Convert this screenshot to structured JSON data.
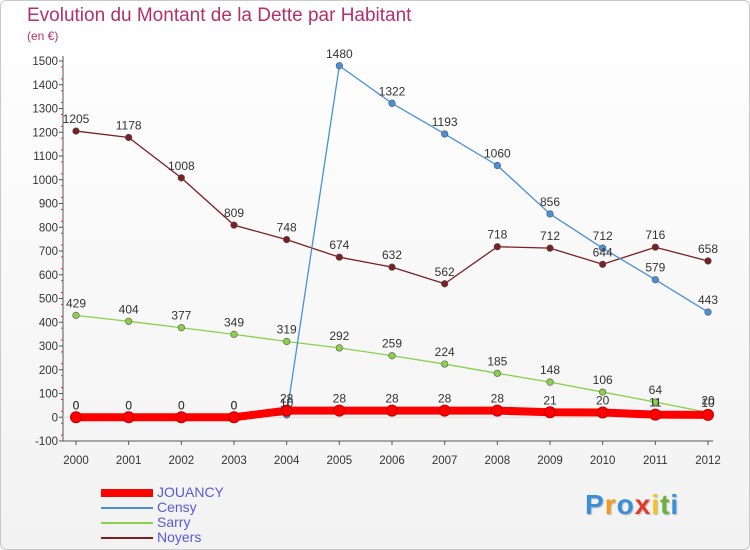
{
  "chart_data": {
    "type": "line",
    "title": "Evolution du Montant de la Dette par Habitant",
    "unit_label": "(en €)",
    "x": [
      "2000",
      "2001",
      "2002",
      "2003",
      "2004",
      "2005",
      "2006",
      "2007",
      "2008",
      "2009",
      "2010",
      "2011",
      "2012"
    ],
    "ylim": [
      -100,
      1500
    ],
    "yticks": [
      -100,
      0,
      100,
      200,
      300,
      400,
      500,
      600,
      700,
      800,
      900,
      1000,
      1100,
      1200,
      1300,
      1400,
      1500
    ],
    "grid": false,
    "legend_position": "bottom-left",
    "series": [
      {
        "name": "JOUANCY",
        "color": "#ff0000",
        "values": [
          0,
          0,
          0,
          0,
          28,
          28,
          28,
          28,
          28,
          21,
          20,
          11,
          10
        ]
      },
      {
        "name": "Censy",
        "color": "#4a90d9",
        "values": [
          0,
          0,
          0,
          0,
          10,
          1480,
          1322,
          1193,
          1060,
          856,
          712,
          579,
          443
        ]
      },
      {
        "name": "Sarry",
        "color": "#8ad04a",
        "values": [
          429,
          404,
          377,
          349,
          319,
          292,
          259,
          224,
          185,
          148,
          106,
          64,
          20
        ]
      },
      {
        "name": "Noyers",
        "color": "#7a1f22",
        "values": [
          1205,
          1178,
          1008,
          809,
          748,
          674,
          632,
          562,
          718,
          712,
          644,
          716,
          658
        ]
      }
    ],
    "data_labels": [
      {
        "text": "0",
        "year": "2000",
        "value": 0
      },
      {
        "text": "0",
        "year": "2001",
        "value": 0
      },
      {
        "text": "0",
        "year": "2002",
        "value": 0
      },
      {
        "text": "0",
        "year": "2003",
        "value": 0
      },
      {
        "text": "28",
        "year": "2004",
        "value": 28
      },
      {
        "text": "28",
        "year": "2005",
        "value": 28
      },
      {
        "text": "28",
        "year": "2006",
        "value": 28
      },
      {
        "text": "28",
        "year": "2007",
        "value": 28
      },
      {
        "text": "28",
        "year": "2008",
        "value": 28
      },
      {
        "text": "21",
        "year": "2009",
        "value": 21
      },
      {
        "text": "20",
        "year": "2010",
        "value": 20
      },
      {
        "text": "11",
        "year": "2011",
        "value": 11
      },
      {
        "text": "10",
        "year": "2012",
        "value": 10
      },
      {
        "text": "0",
        "year": "2000",
        "value": 0
      },
      {
        "text": "0",
        "year": "2001",
        "value": 0
      },
      {
        "text": "0",
        "year": "2002",
        "value": 0
      },
      {
        "text": "0",
        "year": "2003",
        "value": 0
      },
      {
        "text": "10",
        "year": "2004",
        "value": 10
      },
      {
        "text": "1480",
        "year": "2005",
        "value": 1480
      },
      {
        "text": "1322",
        "year": "2006",
        "value": 1322
      },
      {
        "text": "1193",
        "year": "2007",
        "value": 1193
      },
      {
        "text": "1060",
        "year": "2008",
        "value": 1060
      },
      {
        "text": "856",
        "year": "2009",
        "value": 856
      },
      {
        "text": "712",
        "year": "2010",
        "value": 712
      },
      {
        "text": "579",
        "year": "2011",
        "value": 579
      },
      {
        "text": "443",
        "year": "2012",
        "value": 443
      },
      {
        "text": "429",
        "year": "2000",
        "value": 429
      },
      {
        "text": "404",
        "year": "2001",
        "value": 404
      },
      {
        "text": "377",
        "year": "2002",
        "value": 377
      },
      {
        "text": "349",
        "year": "2003",
        "value": 349
      },
      {
        "text": "319",
        "year": "2004",
        "value": 319
      },
      {
        "text": "292",
        "year": "2005",
        "value": 292
      },
      {
        "text": "259",
        "year": "2006",
        "value": 259
      },
      {
        "text": "224",
        "year": "2007",
        "value": 224
      },
      {
        "text": "185",
        "year": "2008",
        "value": 185
      },
      {
        "text": "148",
        "year": "2009",
        "value": 148
      },
      {
        "text": "106",
        "year": "2010",
        "value": 106
      },
      {
        "text": "64",
        "year": "2011",
        "value": 64
      },
      {
        "text": "20",
        "year": "2012",
        "value": 20
      },
      {
        "text": "1205",
        "year": "2000",
        "value": 1205
      },
      {
        "text": "1178",
        "year": "2001",
        "value": 1178
      },
      {
        "text": "1008",
        "year": "2002",
        "value": 1008
      },
      {
        "text": "809",
        "year": "2003",
        "value": 809
      },
      {
        "text": "748",
        "year": "2004",
        "value": 748
      },
      {
        "text": "674",
        "year": "2005",
        "value": 674
      },
      {
        "text": "632",
        "year": "2006",
        "value": 632
      },
      {
        "text": "562",
        "year": "2007",
        "value": 562
      },
      {
        "text": "718",
        "year": "2008",
        "value": 718
      },
      {
        "text": "712",
        "year": "2009",
        "value": 712
      },
      {
        "text": "644",
        "year": "2010",
        "value": 644
      },
      {
        "text": "716",
        "year": "2011",
        "value": 716
      },
      {
        "text": "658",
        "year": "2012",
        "value": 658
      }
    ]
  },
  "legend": [
    {
      "label": "JOUANCY",
      "color": "#ff0000"
    },
    {
      "label": "Censy",
      "color": "#4a90d9"
    },
    {
      "label": "Sarry",
      "color": "#8ad04a"
    },
    {
      "label": "Noyers",
      "color": "#7a1f22"
    }
  ],
  "logo": {
    "text": "Proxiti",
    "letters": [
      {
        "ch": "P",
        "color": "#3a8fd8"
      },
      {
        "ch": "r",
        "color": "#f29a1d"
      },
      {
        "ch": "o",
        "color": "#3a8fd8"
      },
      {
        "ch": "x",
        "color": "#e5392b"
      },
      {
        "ch": "i",
        "color": "#f2c21d"
      },
      {
        "ch": "t",
        "color": "#6ab23c"
      },
      {
        "ch": "i",
        "color": "#3a8fd8"
      }
    ]
  }
}
